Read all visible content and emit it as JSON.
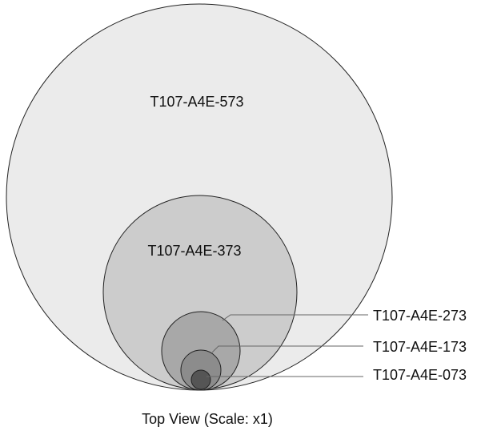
{
  "parts": [
    {
      "id": "573",
      "label": "T107-A4E-573",
      "color": "#ebebeb"
    },
    {
      "id": "373",
      "label": "T107-A4E-373",
      "color": "#cccccc"
    },
    {
      "id": "273",
      "label": "T107-A4E-273",
      "color": "#a8a8a8"
    },
    {
      "id": "173",
      "label": "T107-A4E-173",
      "color": "#8c8c8c"
    },
    {
      "id": "073",
      "label": "T107-A4E-073",
      "color": "#555555"
    }
  ],
  "caption": "Top View (Scale: x1)"
}
